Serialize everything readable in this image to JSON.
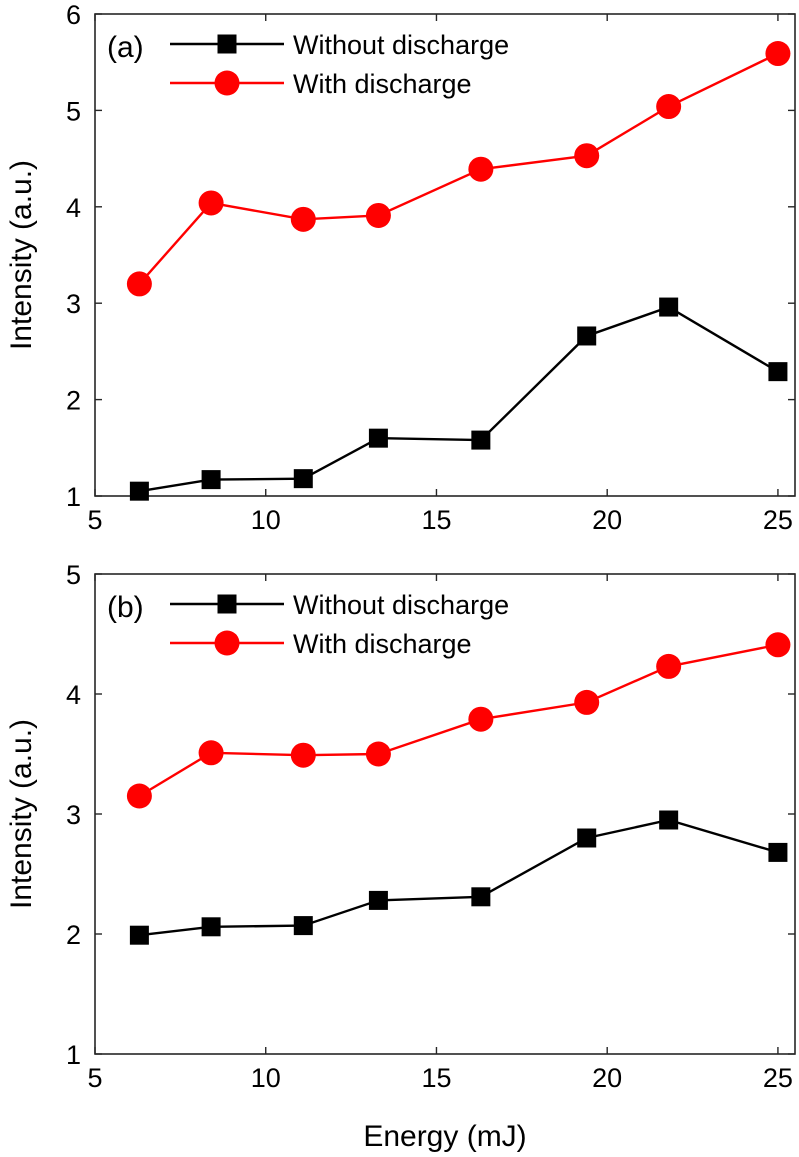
{
  "chart_data": [
    {
      "type": "line",
      "panel_label": "(a)",
      "xlabel": "",
      "ylabel": "Intensity (a.u.)",
      "xlim": [
        5,
        25.5
      ],
      "ylim": [
        1,
        6
      ],
      "xticks": [
        5,
        10,
        15,
        20,
        25
      ],
      "yticks": [
        1,
        2,
        3,
        4,
        5,
        6
      ],
      "grid": false,
      "legend": "top-left",
      "x": [
        6.3,
        8.4,
        11.1,
        13.3,
        16.3,
        19.4,
        21.8,
        25.0
      ],
      "series": [
        {
          "name": "Without discharge",
          "color": "#000000",
          "marker": "square",
          "values": [
            1.05,
            1.17,
            1.18,
            1.6,
            1.58,
            2.66,
            2.96,
            2.29
          ]
        },
        {
          "name": "With discharge",
          "color": "#ff0000",
          "marker": "circle",
          "values": [
            3.2,
            4.04,
            3.87,
            3.91,
            4.39,
            4.53,
            5.04,
            5.59
          ]
        }
      ]
    },
    {
      "type": "line",
      "panel_label": "(b)",
      "xlabel": "Energy (mJ)",
      "ylabel": "Intensity (a.u.)",
      "xlim": [
        5,
        25.5
      ],
      "ylim": [
        1,
        5
      ],
      "xticks": [
        5,
        10,
        15,
        20,
        25
      ],
      "yticks": [
        1,
        2,
        3,
        4,
        5
      ],
      "grid": false,
      "legend": "top-left",
      "x": [
        6.3,
        8.4,
        11.1,
        13.3,
        16.3,
        19.4,
        21.8,
        25.0
      ],
      "series": [
        {
          "name": "Without discharge",
          "color": "#000000",
          "marker": "square",
          "values": [
            1.99,
            2.06,
            2.07,
            2.28,
            2.31,
            2.8,
            2.95,
            2.68
          ]
        },
        {
          "name": "With discharge",
          "color": "#ff0000",
          "marker": "circle",
          "values": [
            3.15,
            3.51,
            3.49,
            3.5,
            3.79,
            3.93,
            4.23,
            4.41
          ]
        }
      ]
    }
  ]
}
